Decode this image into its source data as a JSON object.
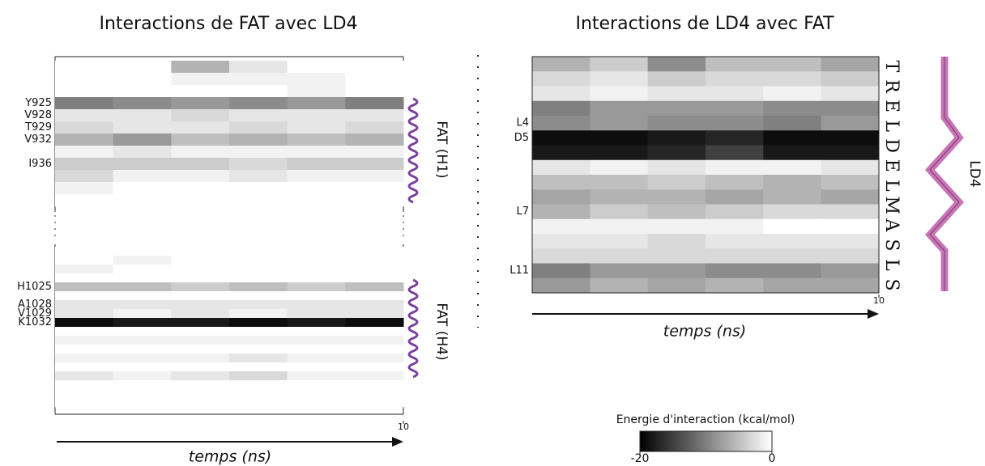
{
  "chart_data": [
    {
      "type": "heatmap",
      "title": "Interactions de FAT avec LD4",
      "xlabel": "temps (ns)",
      "xlim": [
        0,
        10
      ],
      "xticks": [
        10
      ],
      "blocks": [
        {
          "name": "FAT (H1)",
          "rows": [
            {
              "label": null,
              "values": [
                0,
                0,
                -6,
                -2,
                0,
                0
              ]
            },
            {
              "label": null,
              "values": [
                0,
                0,
                -1,
                -1,
                -1,
                0
              ]
            },
            {
              "label": null,
              "values": [
                0,
                0,
                0,
                0,
                -1,
                0
              ]
            },
            {
              "label": "Y925",
              "values": [
                -10,
                -9,
                -8,
                -9,
                -8,
                -10
              ]
            },
            {
              "label": "V928",
              "values": [
                -2,
                -2,
                -3,
                -2,
                -2,
                -2
              ]
            },
            {
              "label": "T929",
              "values": [
                -3,
                -2,
                -2,
                -3,
                -2,
                -3
              ]
            },
            {
              "label": "V932",
              "values": [
                -6,
                -8,
                -5,
                -6,
                -5,
                -6
              ]
            },
            {
              "label": null,
              "values": [
                -1,
                -2,
                -1,
                -1,
                -1,
                -1
              ]
            },
            {
              "label": "I936",
              "values": [
                -4,
                -4,
                -4,
                -3,
                -4,
                -4
              ]
            },
            {
              "label": null,
              "values": [
                -3,
                -1,
                -1,
                -2,
                -1,
                -1
              ]
            },
            {
              "label": null,
              "values": [
                -1,
                0,
                0,
                0,
                0,
                0
              ]
            },
            {
              "label": null,
              "values": [
                0,
                0,
                0,
                0,
                0,
                0
              ]
            }
          ]
        },
        {
          "name": "FAT (H4)",
          "rows": [
            {
              "label": null,
              "values": [
                0,
                0,
                0,
                0,
                0,
                0
              ]
            },
            {
              "label": null,
              "values": [
                0,
                -1,
                0,
                0,
                0,
                0
              ]
            },
            {
              "label": null,
              "values": [
                -1,
                0,
                0,
                0,
                0,
                0
              ]
            },
            {
              "label": null,
              "values": [
                0,
                0,
                0,
                0,
                0,
                0
              ]
            },
            {
              "label": "H1025",
              "values": [
                -5,
                -5,
                -4,
                -5,
                -4,
                -5
              ]
            },
            {
              "label": null,
              "values": [
                0,
                0,
                0,
                0,
                0,
                0
              ]
            },
            {
              "label": "A1028",
              "values": [
                -2,
                -2,
                -2,
                -2,
                -2,
                -2
              ]
            },
            {
              "label": "V1029",
              "values": [
                -2,
                -1,
                -2,
                -1,
                -2,
                -2
              ]
            },
            {
              "label": "K1032",
              "values": [
                -19,
                -18,
                -18,
                -19,
                -18,
                -19
              ]
            },
            {
              "label": null,
              "values": [
                0,
                0,
                0,
                0,
                0,
                0
              ]
            },
            {
              "label": null,
              "values": [
                -1,
                -1,
                -1,
                -1,
                -1,
                -1
              ]
            },
            {
              "label": null,
              "values": [
                0,
                0,
                0,
                0,
                0,
                0
              ]
            },
            {
              "label": null,
              "values": [
                -1,
                -1,
                -1,
                -2,
                -1,
                -1
              ]
            },
            {
              "label": null,
              "values": [
                0,
                0,
                0,
                0,
                0,
                0
              ]
            },
            {
              "label": null,
              "values": [
                -2,
                -1,
                -2,
                -3,
                -1,
                -1
              ]
            },
            {
              "label": null,
              "values": [
                0,
                0,
                0,
                0,
                0,
                0
              ]
            },
            {
              "label": null,
              "values": [
                0,
                0,
                0,
                0,
                0,
                0
              ]
            },
            {
              "label": null,
              "values": [
                0,
                0,
                0,
                0,
                0,
                0
              ]
            }
          ]
        }
      ]
    },
    {
      "type": "heatmap",
      "title": "Interactions de LD4 avec FAT",
      "xlabel": "temps (ns)",
      "xlim": [
        0,
        10
      ],
      "xticks": [
        10
      ],
      "blocks": [
        {
          "name": "LD4",
          "sequence": [
            "T",
            "R",
            "E",
            "L",
            "D",
            "E",
            "L",
            "M",
            "A",
            "S",
            "L",
            "S"
          ],
          "rows": [
            {
              "label": null,
              "values": [
                -6,
                -4,
                -9,
                -5,
                -5,
                -7
              ]
            },
            {
              "label": null,
              "values": [
                -3,
                -2,
                -4,
                -3,
                -3,
                -4
              ]
            },
            {
              "label": null,
              "values": [
                -2,
                -1,
                -2,
                -2,
                -1,
                -2
              ]
            },
            {
              "label": null,
              "values": [
                -10,
                -8,
                -8,
                -8,
                -9,
                -9
              ]
            },
            {
              "label": "L4",
              "values": [
                -9,
                -8,
                -9,
                -9,
                -10,
                -8
              ]
            },
            {
              "label": "D5",
              "values": [
                -19,
                -19,
                -18,
                -17,
                -19,
                -19
              ]
            },
            {
              "label": null,
              "values": [
                -18,
                -18,
                -17,
                -15,
                -18,
                -18
              ]
            },
            {
              "label": null,
              "values": [
                -2,
                -1,
                -2,
                -1,
                -1,
                -2
              ]
            },
            {
              "label": null,
              "values": [
                -5,
                -5,
                -4,
                -5,
                -6,
                -5
              ]
            },
            {
              "label": null,
              "values": [
                -7,
                -6,
                -6,
                -7,
                -6,
                -7
              ]
            },
            {
              "label": "L7",
              "values": [
                -6,
                -4,
                -5,
                -4,
                -3,
                -3
              ]
            },
            {
              "label": null,
              "values": [
                -1,
                -1,
                -1,
                -1,
                0,
                0
              ]
            },
            {
              "label": null,
              "values": [
                -2,
                -2,
                -3,
                -2,
                -2,
                -2
              ]
            },
            {
              "label": null,
              "values": [
                -3,
                -3,
                -3,
                -3,
                -3,
                -3
              ]
            },
            {
              "label": "L11",
              "values": [
                -10,
                -8,
                -8,
                -9,
                -9,
                -8
              ]
            },
            {
              "label": null,
              "values": [
                -8,
                -6,
                -7,
                -6,
                -7,
                -7
              ]
            }
          ]
        }
      ]
    }
  ],
  "colorbar": {
    "title": "Energie d'interaction (kcal/mol)",
    "clim": [
      -20,
      0
    ],
    "ticks": [
      -20,
      0
    ]
  }
}
